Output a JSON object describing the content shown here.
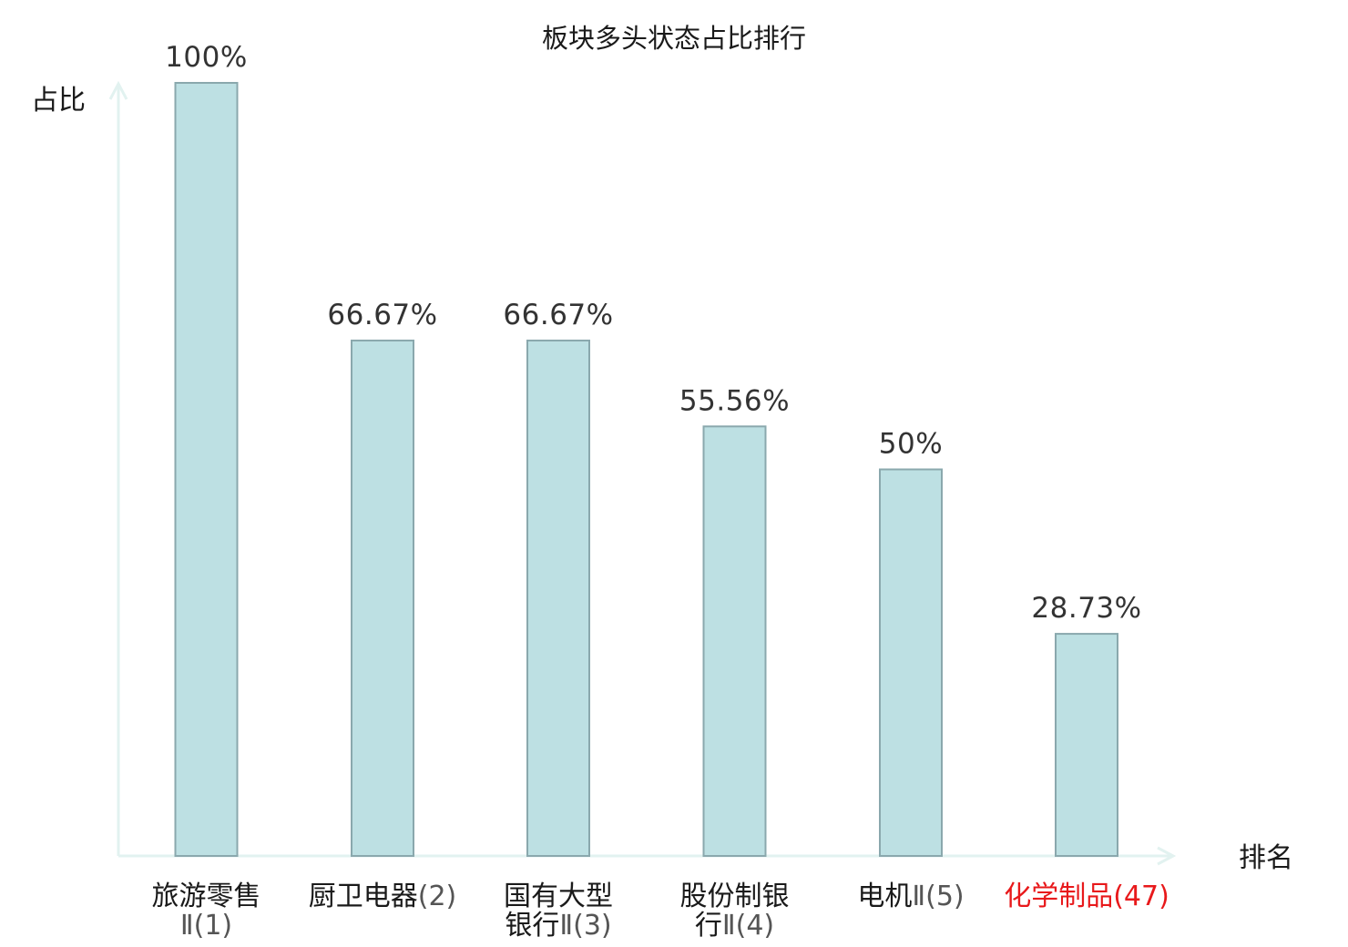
{
  "chart_data": {
    "type": "bar",
    "title": "板块多头状态占比排行",
    "ylabel": "占比",
    "xlabel": "排名",
    "ylim": [
      0,
      100
    ],
    "unit": "%",
    "categories": [
      {
        "lines": [
          [
            {
              "t": "旅游零售",
              "rank": false
            }
          ],
          [
            {
              "t": "Ⅱ(1)",
              "rank": true
            }
          ]
        ],
        "highlight": false
      },
      {
        "lines": [
          [
            {
              "t": "厨卫电器",
              "rank": false
            },
            {
              "t": "(2)",
              "rank": true
            }
          ]
        ],
        "highlight": false
      },
      {
        "lines": [
          [
            {
              "t": "国有大型",
              "rank": false
            }
          ],
          [
            {
              "t": "银行",
              "rank": false
            },
            {
              "t": "Ⅱ(3)",
              "rank": true
            }
          ]
        ],
        "highlight": false
      },
      {
        "lines": [
          [
            {
              "t": "股份制银",
              "rank": false
            }
          ],
          [
            {
              "t": "行",
              "rank": false
            },
            {
              "t": "Ⅱ(4)",
              "rank": true
            }
          ]
        ],
        "highlight": false
      },
      {
        "lines": [
          [
            {
              "t": "电机",
              "rank": false
            },
            {
              "t": "Ⅱ(5)",
              "rank": true
            }
          ]
        ],
        "highlight": false
      },
      {
        "lines": [
          [
            {
              "t": "化学制品",
              "rank": false
            },
            {
              "t": "(47)",
              "rank": true
            }
          ]
        ],
        "highlight": true
      }
    ],
    "values": [
      100,
      66.67,
      66.67,
      55.56,
      50,
      28.73
    ],
    "value_labels": [
      "100%",
      "66.67%",
      "66.67%",
      "55.56%",
      "50%",
      "28.73%"
    ],
    "grid": false,
    "legend": "none"
  },
  "colors": {
    "bar_fill": "#bde0e3",
    "bar_stroke": "#8aa8ad",
    "axis": "#e2f2f0",
    "highlight_text": "#e8191b"
  }
}
